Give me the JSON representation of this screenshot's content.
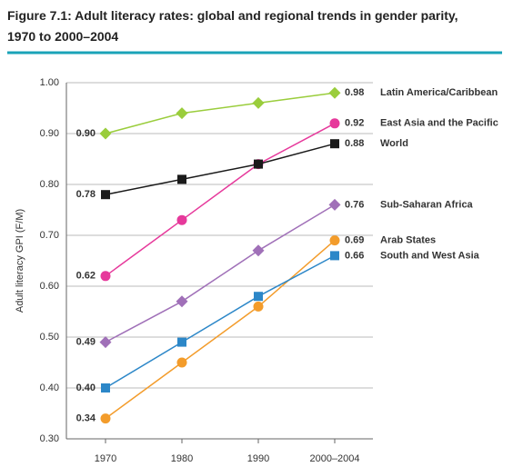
{
  "chart_data": {
    "type": "line",
    "title": "Figure 7.1: Adult literacy rates: global and regional trends in gender parity,",
    "subtitle": "1970 to 2000–2004",
    "y_label": "Adult literacy GPI (F/M)",
    "categories": [
      "1970",
      "1980",
      "1990",
      "2000–2004"
    ],
    "ylim": [
      0.3,
      1.0
    ],
    "yticks": [
      {
        "value": 0.3,
        "label": "0.30"
      },
      {
        "value": 0.4,
        "label": "0.40"
      },
      {
        "value": 0.5,
        "label": "0.50"
      },
      {
        "value": 0.6,
        "label": "0.60"
      },
      {
        "value": 0.7,
        "label": "0.70"
      },
      {
        "value": 0.8,
        "label": "0.80"
      },
      {
        "value": 0.9,
        "label": "0.90"
      },
      {
        "value": 1.0,
        "label": "1.00"
      }
    ],
    "grid": true,
    "series": [
      {
        "name": "Latin America/Caribbean",
        "color": "#9acd3c",
        "marker": "diamond",
        "values": [
          0.9,
          0.94,
          0.96,
          0.98
        ],
        "value_labels": [
          "0.90",
          null,
          null,
          "0.98"
        ]
      },
      {
        "name": "East Asia and the Pacific",
        "color": "#e6399b",
        "marker": "circle",
        "values": [
          0.62,
          0.73,
          0.84,
          0.92
        ],
        "value_labels": [
          "0.62",
          null,
          null,
          "0.92"
        ]
      },
      {
        "name": "World",
        "color": "#1a1a1a",
        "marker": "square",
        "values": [
          0.78,
          0.81,
          0.84,
          0.88
        ],
        "value_labels": [
          "0.78",
          null,
          null,
          "0.88"
        ]
      },
      {
        "name": "Sub-Saharan Africa",
        "color": "#a070b8",
        "marker": "diamond",
        "values": [
          0.49,
          0.57,
          0.67,
          0.76
        ],
        "value_labels": [
          "0.49",
          null,
          null,
          "0.76"
        ]
      },
      {
        "name": "Arab States",
        "color": "#f39c2b",
        "marker": "circle",
        "values": [
          0.34,
          0.45,
          0.56,
          0.69
        ],
        "value_labels": [
          "0.34",
          null,
          null,
          "0.69"
        ]
      },
      {
        "name": "South and West Asia",
        "color": "#2c87c8",
        "marker": "square",
        "values": [
          0.4,
          0.49,
          0.58,
          0.66
        ],
        "value_labels": [
          "0.40",
          null,
          null,
          "0.66"
        ]
      }
    ]
  }
}
